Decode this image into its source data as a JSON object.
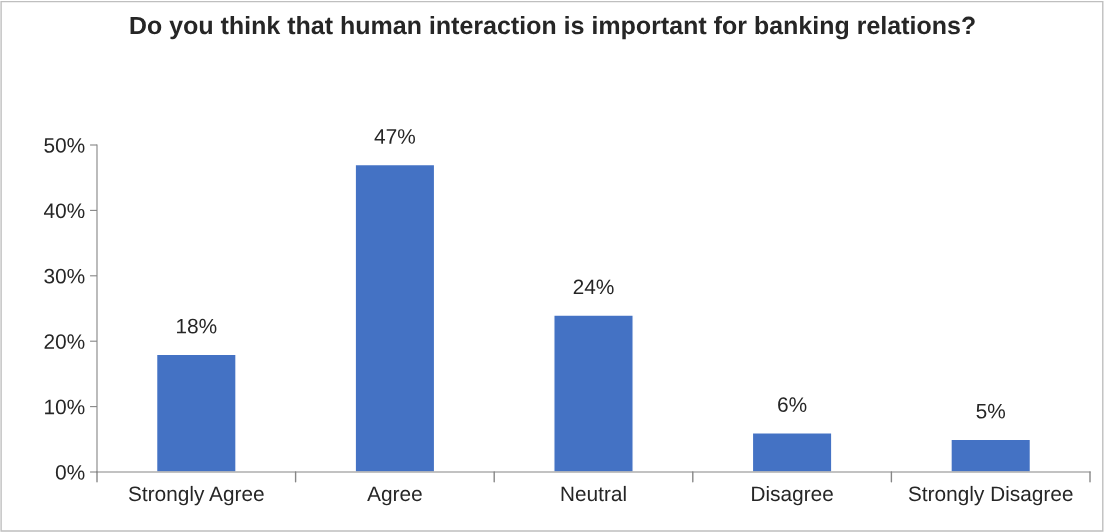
{
  "chart_data": {
    "type": "bar",
    "title": "Do you think that human interaction is important for banking relations?",
    "categories": [
      "Strongly Agree",
      "Agree",
      "Neutral",
      "Disagree",
      "Strongly Disagree"
    ],
    "values": [
      18,
      47,
      24,
      6,
      5
    ],
    "value_labels": [
      "18%",
      "47%",
      "24%",
      "6%",
      "5%"
    ],
    "color": "#4472c4",
    "ylim": [
      0,
      50
    ],
    "yticks": [
      {
        "value": 0,
        "label": "0%"
      },
      {
        "value": 10,
        "label": "10%"
      },
      {
        "value": 20,
        "label": "20%"
      },
      {
        "value": 30,
        "label": "30%"
      },
      {
        "value": 40,
        "label": "40%"
      },
      {
        "value": 50,
        "label": "50%"
      }
    ],
    "grid": false,
    "legend": false
  }
}
